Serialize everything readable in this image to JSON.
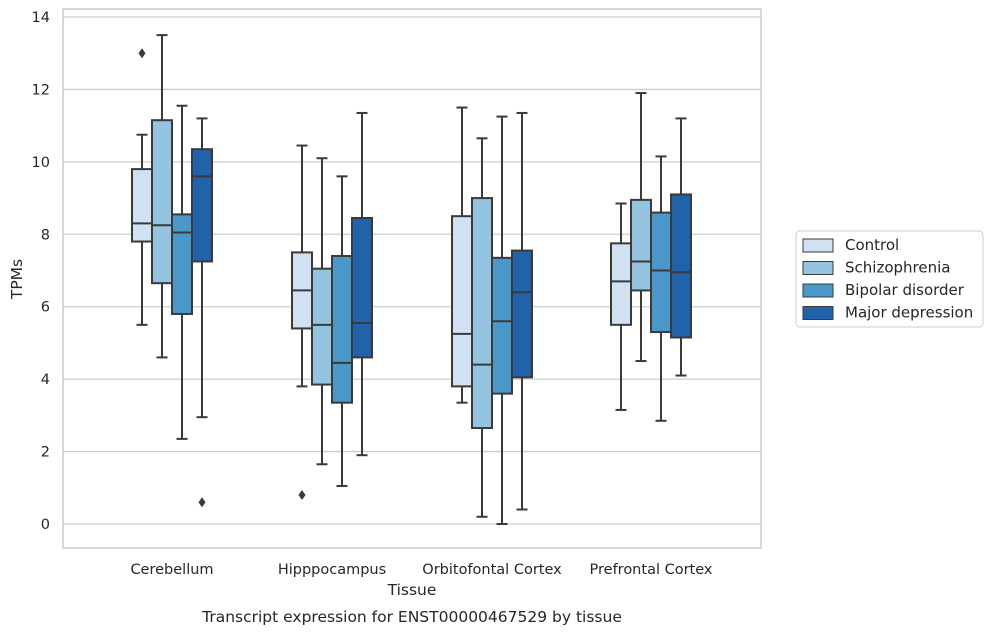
{
  "chart_data": {
    "type": "box",
    "title": "Transcript expression for ENST00000467529 by tissue",
    "xlabel": "Tissue",
    "ylabel": "TPMs",
    "ylim": [
      -0.65,
      14.25
    ],
    "yticks": [
      0,
      2,
      4,
      6,
      8,
      10,
      12,
      14
    ],
    "grid": true,
    "legend_position": "right",
    "categories": [
      "Cerebellum",
      "Hipppocampus",
      "Orbitofontal Cortex",
      "Prefrontal Cortex"
    ],
    "series": [
      {
        "name": "Control",
        "color": "#d0e1f2",
        "boxes": [
          {
            "whisker_low": 5.5,
            "q1": 7.8,
            "median": 8.3,
            "q3": 9.8,
            "whisker_high": 10.75,
            "outliers": [
              13.0
            ]
          },
          {
            "whisker_low": 3.8,
            "q1": 5.4,
            "median": 6.45,
            "q3": 7.5,
            "whisker_high": 10.45,
            "outliers": [
              0.8
            ]
          },
          {
            "whisker_low": 3.35,
            "q1": 3.8,
            "median": 5.25,
            "q3": 8.5,
            "whisker_high": 11.5,
            "outliers": []
          },
          {
            "whisker_low": 3.15,
            "q1": 5.5,
            "median": 6.7,
            "q3": 7.75,
            "whisker_high": 8.85,
            "outliers": []
          }
        ]
      },
      {
        "name": "Schizophrenia",
        "color": "#94c4df",
        "boxes": [
          {
            "whisker_low": 4.6,
            "q1": 6.65,
            "median": 8.25,
            "q3": 11.15,
            "whisker_high": 13.5,
            "outliers": []
          },
          {
            "whisker_low": 1.65,
            "q1": 3.85,
            "median": 5.5,
            "q3": 7.05,
            "whisker_high": 10.1,
            "outliers": []
          },
          {
            "whisker_low": 0.2,
            "q1": 2.65,
            "median": 4.4,
            "q3": 9.0,
            "whisker_high": 10.65,
            "outliers": []
          },
          {
            "whisker_low": 4.5,
            "q1": 6.45,
            "median": 7.25,
            "q3": 8.95,
            "whisker_high": 11.9,
            "outliers": []
          }
        ]
      },
      {
        "name": "Bipolar disorder",
        "color": "#4a98c9",
        "boxes": [
          {
            "whisker_low": 2.35,
            "q1": 5.8,
            "median": 8.05,
            "q3": 8.55,
            "whisker_high": 11.55,
            "outliers": []
          },
          {
            "whisker_low": 1.05,
            "q1": 3.35,
            "median": 4.45,
            "q3": 7.4,
            "whisker_high": 9.6,
            "outliers": []
          },
          {
            "whisker_low": 0.0,
            "q1": 3.6,
            "median": 5.6,
            "q3": 7.35,
            "whisker_high": 11.25,
            "outliers": []
          },
          {
            "whisker_low": 2.85,
            "q1": 5.3,
            "median": 7.0,
            "q3": 8.6,
            "whisker_high": 10.15,
            "outliers": []
          }
        ]
      },
      {
        "name": "Major depression",
        "color": "#2163aa",
        "boxes": [
          {
            "whisker_low": 2.95,
            "q1": 7.25,
            "median": 9.6,
            "q3": 10.35,
            "whisker_high": 11.2,
            "outliers": [
              0.6
            ]
          },
          {
            "whisker_low": 1.9,
            "q1": 4.6,
            "median": 5.55,
            "q3": 8.45,
            "whisker_high": 11.35,
            "outliers": []
          },
          {
            "whisker_low": 0.4,
            "q1": 4.05,
            "median": 6.4,
            "q3": 7.55,
            "whisker_high": 11.35,
            "outliers": []
          },
          {
            "whisker_low": 4.1,
            "q1": 5.15,
            "median": 6.95,
            "q3": 9.1,
            "whisker_high": 11.2,
            "outliers": []
          }
        ]
      }
    ]
  },
  "colors": {
    "grid": "#cccccc",
    "edge": "#3a3a3a",
    "frame": "#cccccc"
  }
}
